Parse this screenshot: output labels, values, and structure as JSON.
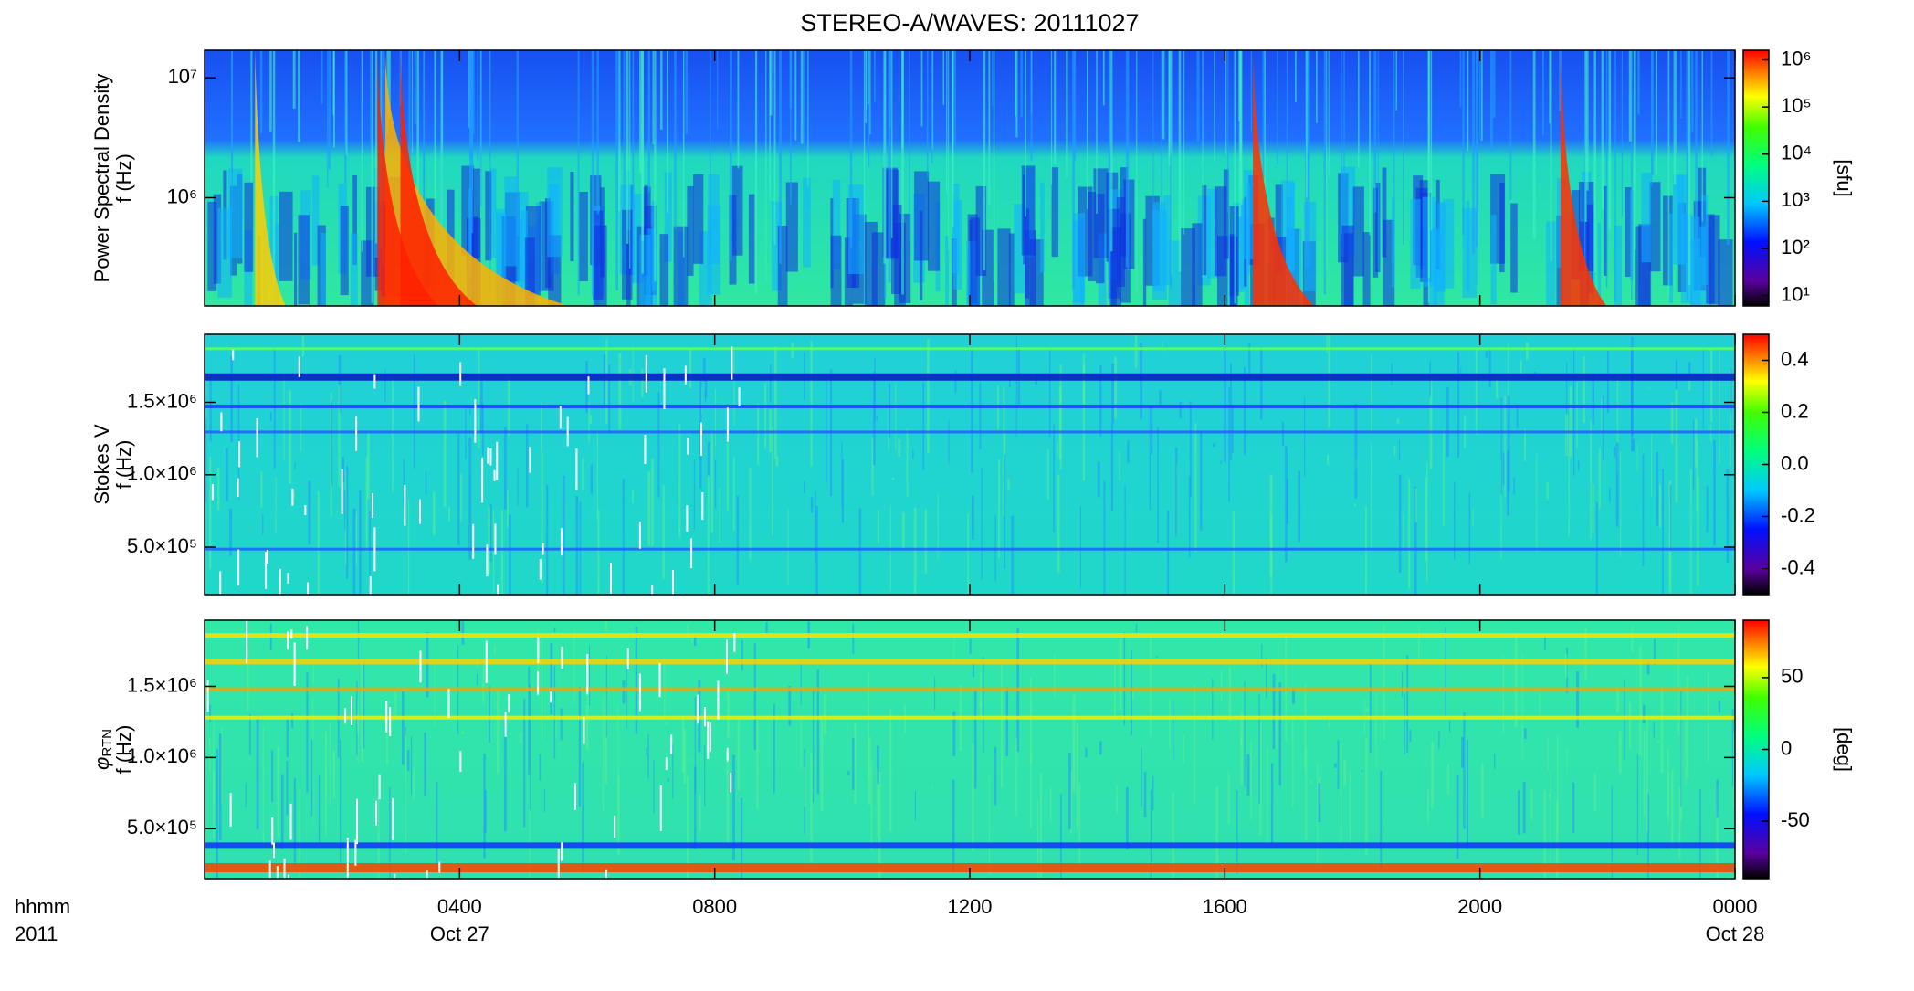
{
  "chart_data": [
    {
      "type": "spectrogram",
      "title": "STEREO-A/WAVES: 20111027",
      "ylabel": [
        "Power Spectral Density",
        "f (Hz)"
      ],
      "ylog": true,
      "ylim": [
        125000,
        17000000
      ],
      "yticks": [
        {
          "value": 1000000,
          "label": "10⁶"
        },
        {
          "value": 10000000,
          "label": "10⁷"
        }
      ],
      "colormap": "rainbow",
      "clog": true,
      "clim": [
        6,
        1600000
      ],
      "cticks": [
        {
          "value": 10,
          "label": "10¹"
        },
        {
          "value": 100,
          "label": "10²"
        },
        {
          "value": 1000,
          "label": "10³"
        },
        {
          "value": 10000,
          "label": "10⁴"
        },
        {
          "value": 100000,
          "label": "10⁵"
        },
        {
          "value": 1000000,
          "label": "10⁶"
        }
      ],
      "clabel": "[sfu]"
    },
    {
      "type": "spectrogram",
      "ylabel": [
        "Stokes V",
        "f (Hz)"
      ],
      "ylog": false,
      "ylim": [
        172000,
        1970000
      ],
      "yticks": [
        {
          "value": 500000,
          "label": "5.0×10⁵"
        },
        {
          "value": 1000000,
          "label": "1.0×10⁶"
        },
        {
          "value": 1500000,
          "label": "1.5×10⁶"
        }
      ],
      "colormap": "rainbow",
      "clog": false,
      "clim": [
        -0.5,
        0.5
      ],
      "cticks": [
        -0.4,
        -0.2,
        {
          "value": 0,
          "label": "0.0"
        },
        0.2,
        0.4
      ]
    },
    {
      "type": "spectrogram",
      "ylabel_symbol": "φ",
      "ylabel_subscript": "RTN",
      "ylabel": [
        "f (Hz)"
      ],
      "ylog": false,
      "ylim": [
        149000,
        1965000
      ],
      "yticks": [
        {
          "value": 500000,
          "label": "5.0×10⁵"
        },
        {
          "value": 1000000,
          "label": "1.0×10⁶"
        },
        {
          "value": 1500000,
          "label": "1.5×10⁶"
        }
      ],
      "colormap": "rainbow",
      "clog": false,
      "clim": [
        -90,
        90
      ],
      "cticks": [
        -50,
        0,
        50
      ],
      "clabel": "[deg]",
      "xlim": [
        0,
        24
      ],
      "xticks": [
        {
          "value": 4,
          "label": "0400"
        },
        {
          "value": 8,
          "label": "0800"
        },
        {
          "value": 12,
          "label": "1200"
        },
        {
          "value": 16,
          "label": "1600"
        },
        {
          "value": 20,
          "label": "2000"
        },
        {
          "value": 24,
          "label": "0000"
        }
      ],
      "xlabel": "hhmm",
      "year": "2011",
      "date_labels": [
        {
          "value": 4,
          "label": "Oct 27"
        },
        {
          "value": 24,
          "label": "Oct 28"
        }
      ]
    }
  ]
}
